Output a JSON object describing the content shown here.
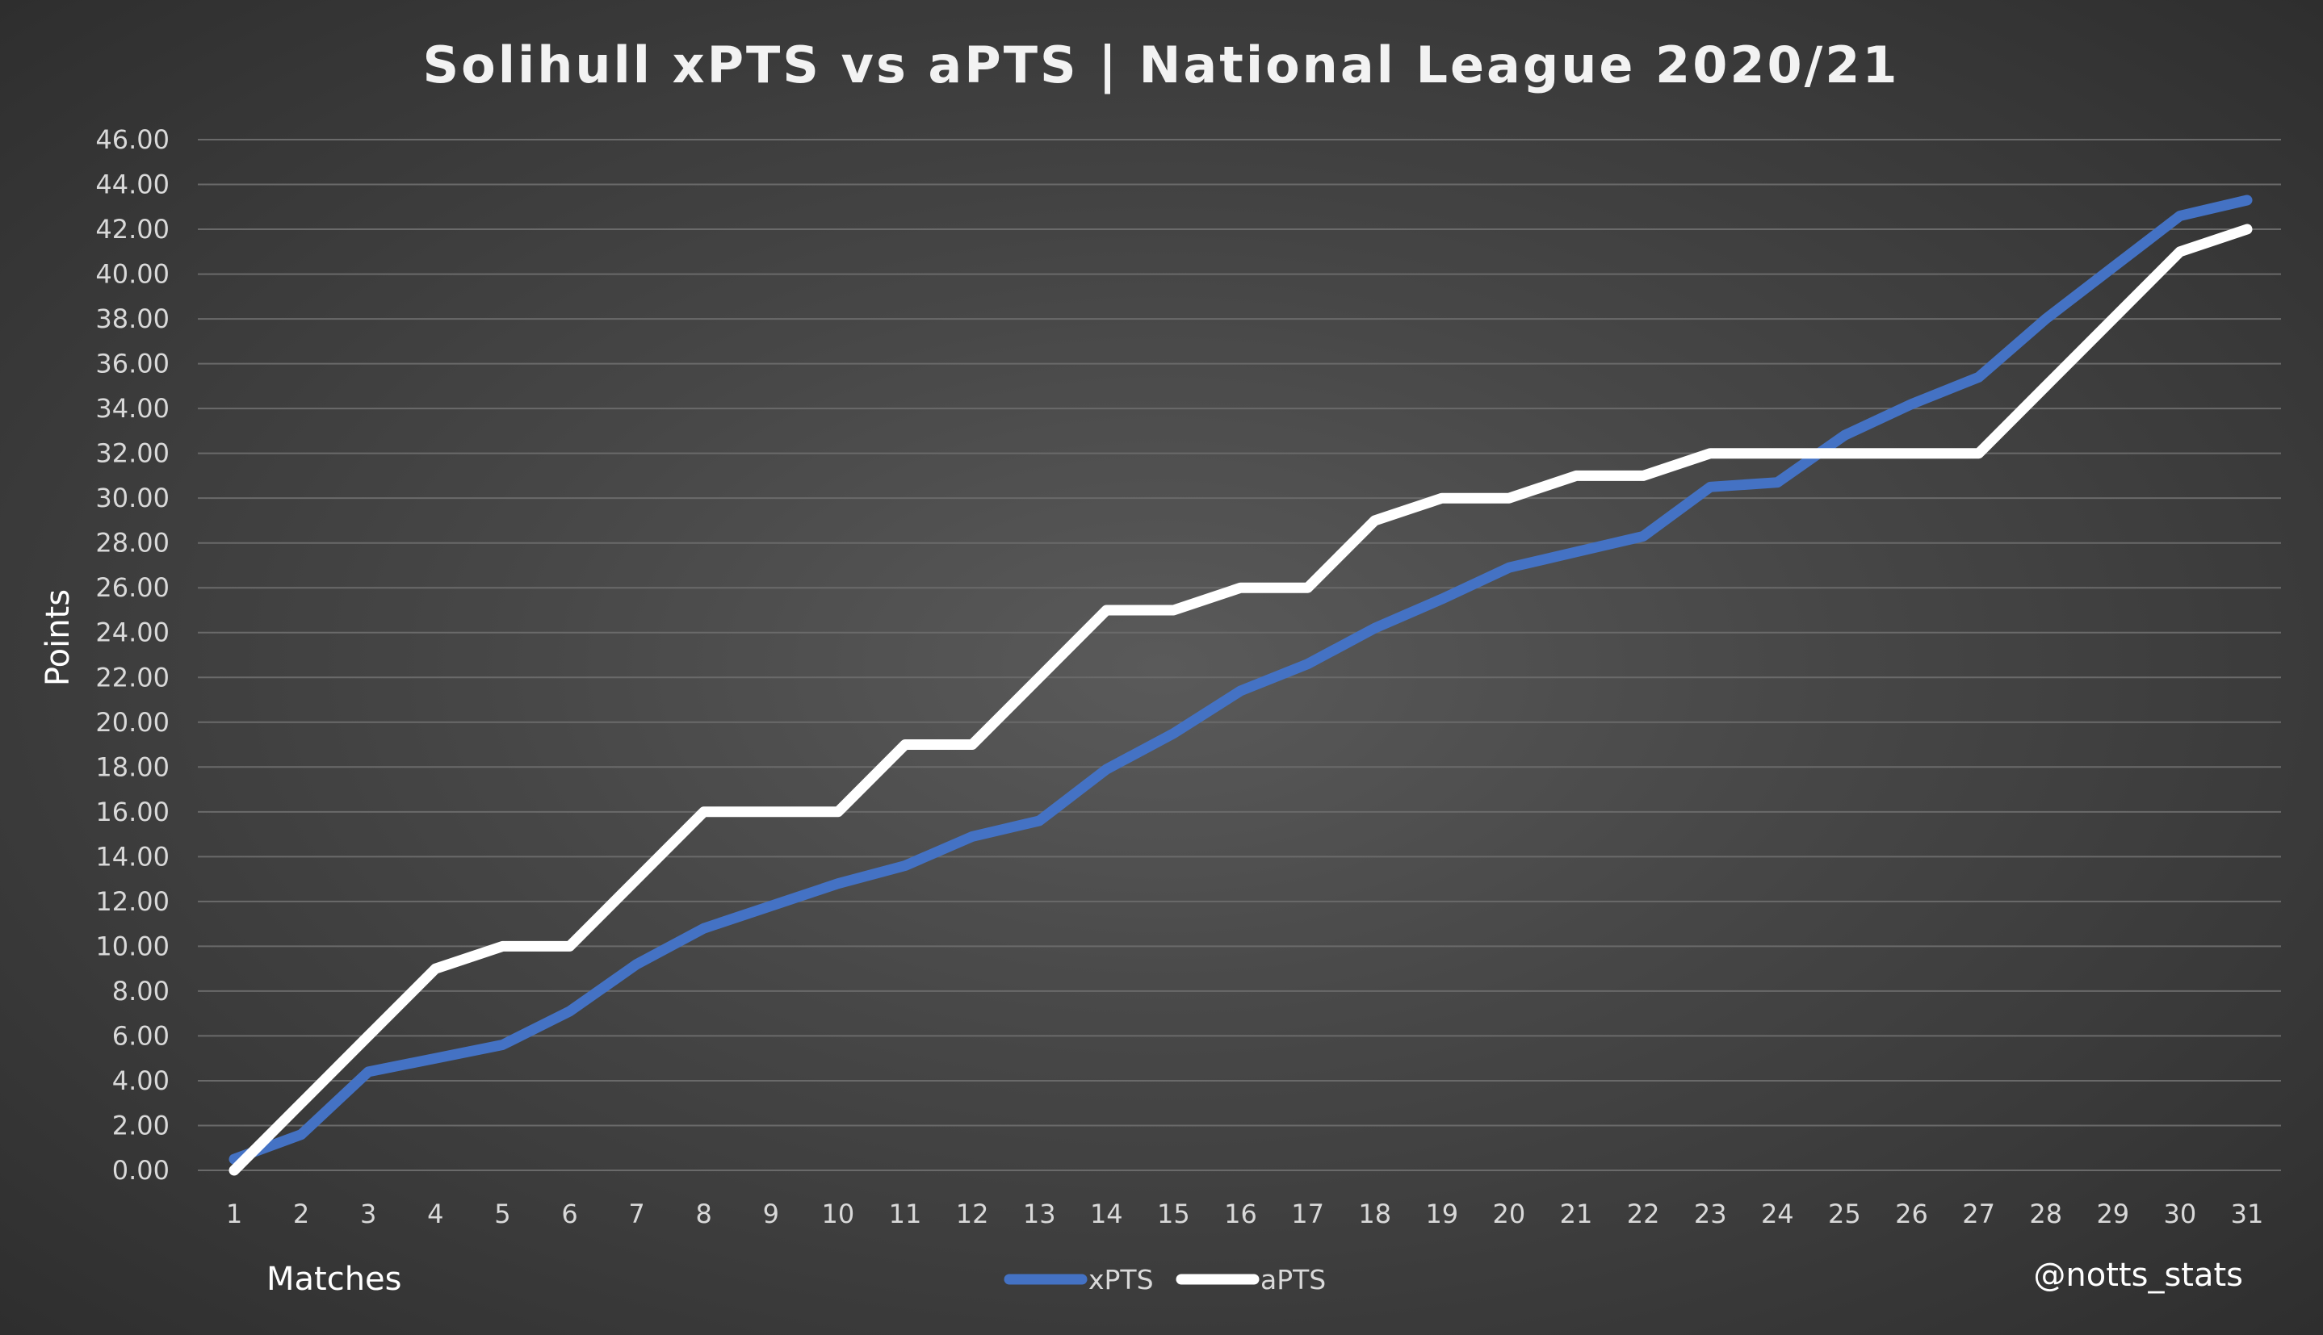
{
  "chart_data": {
    "type": "line",
    "title": "Solihull xPTS vs aPTS | National League 2020/21",
    "xlabel": "Matches",
    "ylabel": "Points",
    "credit": "@notts_stats",
    "ylim": [
      0,
      46
    ],
    "ytick_step": 2,
    "ytick_labels": [
      "0.00",
      "2.00",
      "4.00",
      "6.00",
      "8.00",
      "10.00",
      "12.00",
      "14.00",
      "16.00",
      "18.00",
      "20.00",
      "22.00",
      "24.00",
      "26.00",
      "28.00",
      "30.00",
      "32.00",
      "34.00",
      "36.00",
      "38.00",
      "40.00",
      "42.00",
      "44.00",
      "46.00"
    ],
    "x": [
      1,
      2,
      3,
      4,
      5,
      6,
      7,
      8,
      9,
      10,
      11,
      12,
      13,
      14,
      15,
      16,
      17,
      18,
      19,
      20,
      21,
      22,
      23,
      24,
      25,
      26,
      27,
      28,
      29,
      30,
      31
    ],
    "grid": true,
    "legend_position": "bottom-center",
    "series": [
      {
        "name": "xPTS",
        "color": "#4472c4",
        "values": [
          0.5,
          1.6,
          4.4,
          5.0,
          5.6,
          7.1,
          9.2,
          10.8,
          11.8,
          12.8,
          13.6,
          14.9,
          15.6,
          17.9,
          19.5,
          21.4,
          22.6,
          24.2,
          25.5,
          26.9,
          27.6,
          28.3,
          30.5,
          30.7,
          32.8,
          34.2,
          35.4,
          38.0,
          40.3,
          42.6,
          43.3
        ]
      },
      {
        "name": "aPTS",
        "color": "#ffffff",
        "values": [
          0,
          3,
          6,
          9,
          10,
          10,
          13,
          16,
          16,
          16,
          19,
          19,
          22,
          25,
          25,
          26,
          26,
          29,
          30,
          30,
          31,
          31,
          32,
          32,
          32,
          32,
          32,
          35,
          38,
          41,
          42
        ]
      }
    ]
  }
}
